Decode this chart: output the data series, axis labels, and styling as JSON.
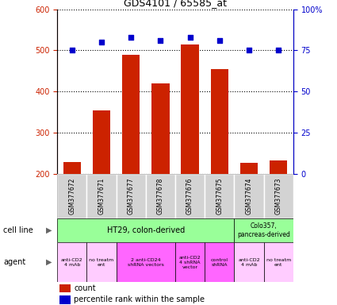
{
  "title": "GDS4101 / 65585_at",
  "samples": [
    "GSM377672",
    "GSM377671",
    "GSM377677",
    "GSM377678",
    "GSM377676",
    "GSM377675",
    "GSM377674",
    "GSM377673"
  ],
  "counts": [
    228,
    355,
    490,
    420,
    515,
    455,
    226,
    232
  ],
  "percentiles": [
    75,
    80,
    83,
    81,
    83,
    81,
    75,
    75
  ],
  "ylim_left": [
    200,
    600
  ],
  "ylim_right": [
    0,
    100
  ],
  "yticks_left": [
    200,
    300,
    400,
    500,
    600
  ],
  "yticks_right": [
    0,
    25,
    50,
    75,
    100
  ],
  "bar_color": "#cc2200",
  "dot_color": "#0000cc",
  "cell_line_color": "#99ff99",
  "agent_light_color": "#ffccff",
  "agent_dark_color": "#ff66ff",
  "sample_box_color": "#d3d3d3",
  "legend_count": "count",
  "legend_pct": "percentile rank within the sample",
  "agent_data": [
    [
      0,
      1,
      "#ffccff",
      "anti-CD2\n4 mAb"
    ],
    [
      1,
      2,
      "#ffccff",
      "no treatm\nent"
    ],
    [
      2,
      4,
      "#ff66ff",
      "2 anti-CD24\nshRNA vectors"
    ],
    [
      4,
      5,
      "#ff66ff",
      "anti-CD2\n4 shRNA\nvector"
    ],
    [
      5,
      6,
      "#ff66ff",
      "control\nshRNA"
    ],
    [
      6,
      7,
      "#ffccff",
      "anti-CD2\n4 mAb"
    ],
    [
      7,
      8,
      "#ffccff",
      "no treatm\nent"
    ]
  ]
}
